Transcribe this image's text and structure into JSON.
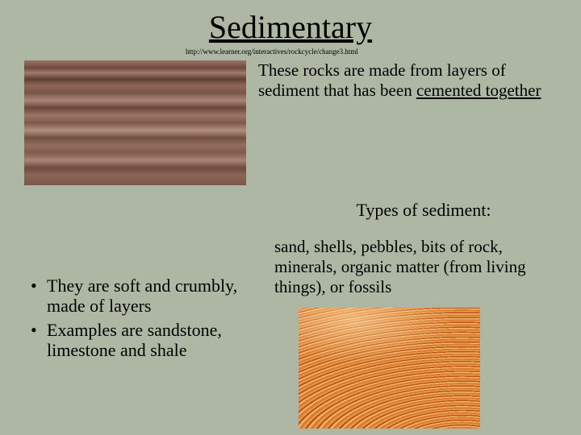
{
  "title": "Sedimentary",
  "url_text": "http://www.learner.org/interactives/rockcycle/change3.html",
  "description_prefix": "These rocks are made from layers of sediment that has been ",
  "description_underlined": "cemented together",
  "subheading": "Types of sediment:",
  "sediment_list": "sand, shells, pebbles, bits of rock, minerals, organic matter (from living things), or fossils",
  "bullets": {
    "b1": "They are soft and crumbly, made of layers",
    "b2": "Examples are sandstone, limestone and shale"
  },
  "images": {
    "img1_alt": "layered sedimentary rock texture",
    "img2_alt": "wave rock canyon striations"
  },
  "colors": {
    "background": "#aeb7a4",
    "text": "#000000"
  }
}
